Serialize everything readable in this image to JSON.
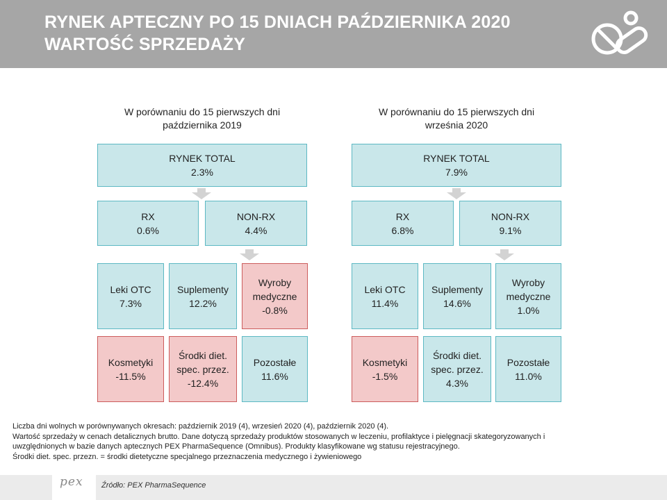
{
  "header": {
    "title_line1": "RYNEK APTECZNY PO 15 DNIACH PAŹDZIERNIKA 2020",
    "title_line2": "WARTOŚĆ SPRZEDAŻY",
    "logo_icon": "pills-icon"
  },
  "left": {
    "heading_line1": "W porównaniu do 15 pierwszych dni",
    "heading_line2": "października 2019",
    "total": {
      "label": "RYNEK TOTAL",
      "value": "2.3%"
    },
    "rx": {
      "label": "RX",
      "value": "0.6%"
    },
    "nonrx": {
      "label": "NON-RX",
      "value": "4.4%"
    },
    "leki": {
      "label": "Leki OTC",
      "value": "7.3%"
    },
    "suple": {
      "label": "Suplementy",
      "value": "12.2%"
    },
    "wyroby": {
      "label1": "Wyroby",
      "label2": "medyczne",
      "value": "-0.8%"
    },
    "kosm": {
      "label": "Kosmetyki",
      "value": "-11.5%"
    },
    "srodki": {
      "label1": "Środki diet.",
      "label2": "spec. przez.",
      "value": "-12.4%"
    },
    "pozost": {
      "label": "Pozostałe",
      "value": "11.6%"
    }
  },
  "right": {
    "heading_line1": "W porównaniu do 15 pierwszych dni",
    "heading_line2": "września 2020",
    "total": {
      "label": "RYNEK TOTAL",
      "value": "7.9%"
    },
    "rx": {
      "label": "RX",
      "value": "6.8%"
    },
    "nonrx": {
      "label": "NON-RX",
      "value": "9.1%"
    },
    "leki": {
      "label": "Leki OTC",
      "value": "11.4%"
    },
    "suple": {
      "label": "Suplementy",
      "value": "14.6%"
    },
    "wyroby": {
      "label1": "Wyroby",
      "label2": "medyczne",
      "value": "1.0%"
    },
    "kosm": {
      "label": "Kosmetyki",
      "value": "-1.5%"
    },
    "srodki": {
      "label1": "Środki diet.",
      "label2": "spec. przez.",
      "value": "4.3%"
    },
    "pozost": {
      "label": "Pozostałe",
      "value": "11.0%"
    }
  },
  "notes": {
    "line1": "Liczba dni wolnych w porównywanych okresach: październik 2019 (4), wrzesień 2020 (4), październik 2020 (4).",
    "line2": "Wartość sprzedaży w cenach detalicznych brutto. Dane dotyczą sprzedaży produktów stosowanych w leczeniu, profilaktyce i pielęgnacji skategoryzowanych i",
    "line3": "uwzględnionych w bazie danych aptecznych PEX PharmaSequence (Omnibus). Produkty klasyfikowane wg statusu rejestracyjnego.",
    "line4": "Środki diet. spec. przezn. = środki dietetyczne specjalnego przeznaczenia medycznego i żywieniowego"
  },
  "footer": {
    "logo_text": "pex",
    "source": "Źródło: PEX PharmaSequence"
  },
  "colors": {
    "header_bg": "#a6a6a6",
    "box_positive_fill": "#c9e7ea",
    "box_positive_border": "#5cb8c3",
    "box_negative_fill": "#f3c9c9",
    "box_negative_border": "#cc5c5c"
  }
}
